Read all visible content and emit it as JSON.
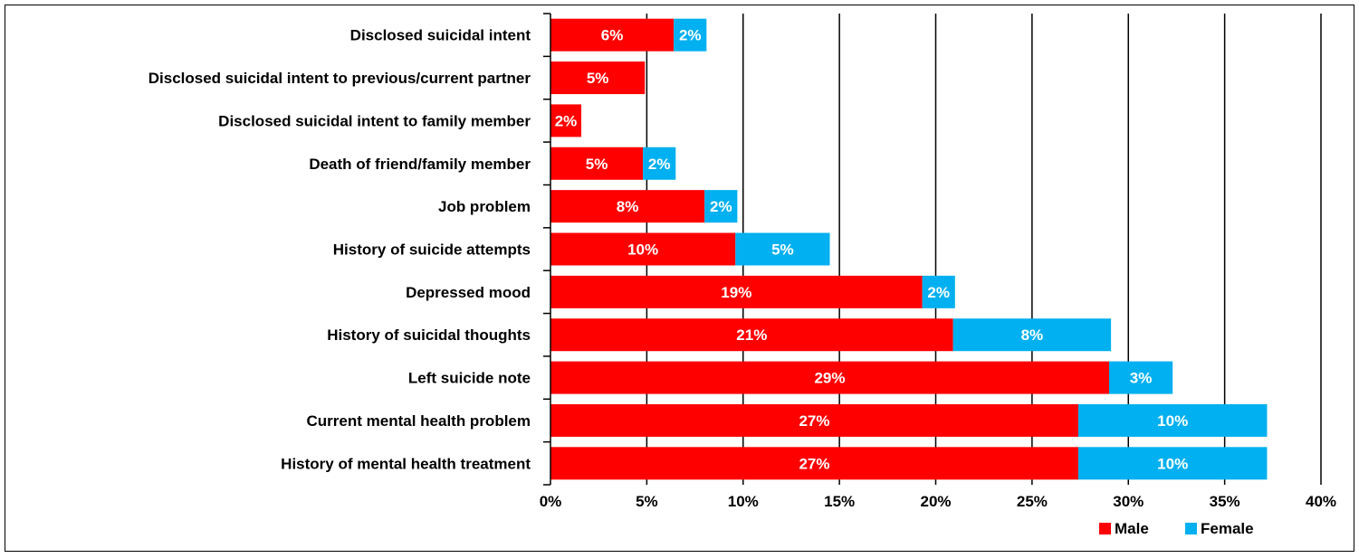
{
  "chart_data": {
    "type": "bar",
    "orientation": "horizontal",
    "stacked": true,
    "title": "",
    "xlabel": "",
    "ylabel": "",
    "xlim": [
      0,
      40
    ],
    "x_ticks": [
      "0%",
      "5%",
      "10%",
      "15%",
      "20%",
      "25%",
      "30%",
      "35%",
      "40%"
    ],
    "grid": "vertical major gridlines",
    "legend_position": "bottom-right",
    "categories": [
      "Disclosed suicidal intent",
      "Disclosed suicidal intent to previous/current partner",
      "Disclosed suicidal intent to family member",
      "Death of friend/family member",
      "Job problem",
      "History of suicide attempts",
      "Depressed mood",
      "History of suicidal thoughts",
      "Left suicide note",
      "Current mental health problem",
      "History of mental health treatment"
    ],
    "series": [
      {
        "name": "Male",
        "color": "#ff0000",
        "values": [
          6.4,
          4.9,
          1.6,
          4.8,
          8.0,
          9.6,
          19.3,
          20.9,
          29.0,
          27.4,
          27.4
        ],
        "labels": [
          "6%",
          "5%",
          "2%",
          "5%",
          "8%",
          "10%",
          "19%",
          "21%",
          "29%",
          "27%",
          "27%"
        ]
      },
      {
        "name": "Female",
        "color": "#00b0f0",
        "values": [
          1.7,
          0,
          0,
          1.7,
          1.7,
          4.9,
          1.7,
          8.2,
          3.3,
          9.8,
          9.8
        ],
        "labels": [
          "2%",
          "",
          "",
          "2%",
          "2%",
          "5%",
          "2%",
          "8%",
          "3%",
          "10%",
          "10%"
        ]
      }
    ]
  }
}
